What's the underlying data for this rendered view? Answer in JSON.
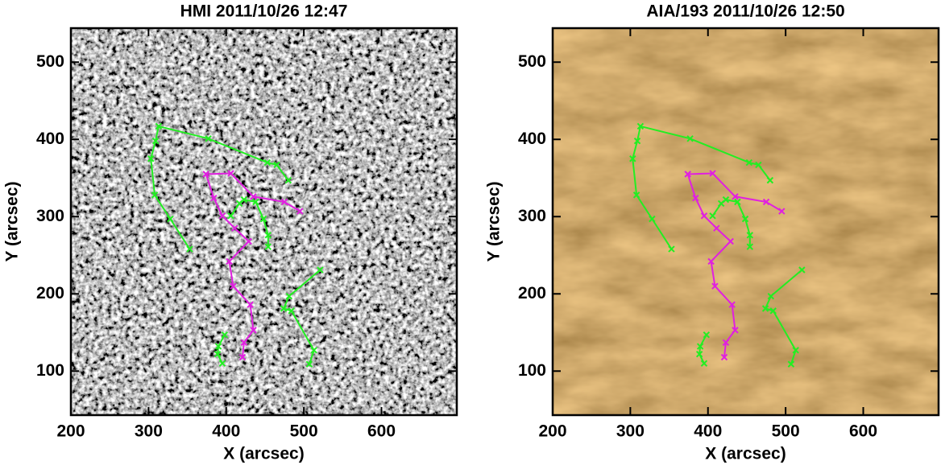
{
  "chart_data": [
    {
      "type": "line",
      "title": "HMI 2011/10/26 12:47",
      "x_label": "X (arcsec)",
      "y_label": "Y (arcsec)",
      "background": "magnetogram",
      "xlim": [
        200,
        697
      ],
      "ylim": [
        43,
        544
      ],
      "xticks": [
        200,
        300,
        400,
        500,
        600
      ],
      "yticks": [
        100,
        200,
        300,
        400,
        500
      ],
      "series": [
        {
          "color": "#22ee22",
          "x": [
            353,
            328,
            308,
            303,
            309,
            313,
            377,
            453,
            465,
            480
          ],
          "values": [
            258,
            297,
            328,
            375,
            398,
            417,
            401,
            370,
            367,
            347
          ]
        },
        {
          "color": "#e020e0",
          "x": [
            374,
            406,
            435,
            475,
            495
          ],
          "values": [
            355,
            356,
            326,
            319,
            307
          ]
        },
        {
          "color": "#e020e0",
          "x": [
            374,
            384,
            395,
            411,
            429,
            404,
            409,
            431,
            435,
            423,
            421
          ],
          "values": [
            355,
            324,
            301,
            285,
            268,
            242,
            210,
            186,
            153,
            137,
            118
          ]
        },
        {
          "color": "#22ee22",
          "x": [
            406,
            417,
            423,
            438,
            448,
            454,
            454
          ],
          "values": [
            301,
            317,
            322,
            319,
            297,
            276,
            261
          ]
        },
        {
          "color": "#22ee22",
          "x": [
            521,
            481,
            474,
            484,
            513,
            507
          ],
          "values": [
            231,
            197,
            181,
            178,
            127,
            109
          ]
        },
        {
          "color": "#22ee22",
          "x": [
            398,
            390,
            389,
            395
          ],
          "values": [
            147,
            132,
            122,
            110
          ]
        }
      ]
    },
    {
      "type": "line",
      "title": "AIA/193 2011/10/26 12:50",
      "x_label": "X (arcsec)",
      "y_label": "Y (arcsec)",
      "background": "euv",
      "xlim": [
        200,
        697
      ],
      "ylim": [
        43,
        544
      ],
      "xticks": [
        200,
        300,
        400,
        500,
        600
      ],
      "yticks": [
        100,
        200,
        300,
        400,
        500
      ],
      "series": [
        {
          "color": "#22ee22",
          "x": [
            353,
            328,
            308,
            303,
            309,
            313,
            377,
            453,
            465,
            480
          ],
          "values": [
            258,
            297,
            328,
            375,
            398,
            417,
            401,
            370,
            367,
            347
          ]
        },
        {
          "color": "#e020e0",
          "x": [
            374,
            406,
            435,
            475,
            495
          ],
          "values": [
            355,
            356,
            326,
            319,
            307
          ]
        },
        {
          "color": "#e020e0",
          "x": [
            374,
            384,
            395,
            411,
            429,
            404,
            409,
            431,
            435,
            423,
            421
          ],
          "values": [
            355,
            324,
            301,
            285,
            268,
            242,
            210,
            186,
            153,
            137,
            118
          ]
        },
        {
          "color": "#22ee22",
          "x": [
            406,
            417,
            423,
            438,
            448,
            454,
            454
          ],
          "values": [
            301,
            317,
            322,
            319,
            297,
            276,
            261
          ]
        },
        {
          "color": "#22ee22",
          "x": [
            521,
            481,
            474,
            484,
            513,
            507
          ],
          "values": [
            231,
            197,
            181,
            178,
            127,
            109
          ]
        },
        {
          "color": "#22ee22",
          "x": [
            398,
            390,
            389,
            395
          ],
          "values": [
            147,
            132,
            122,
            110
          ]
        }
      ]
    }
  ]
}
